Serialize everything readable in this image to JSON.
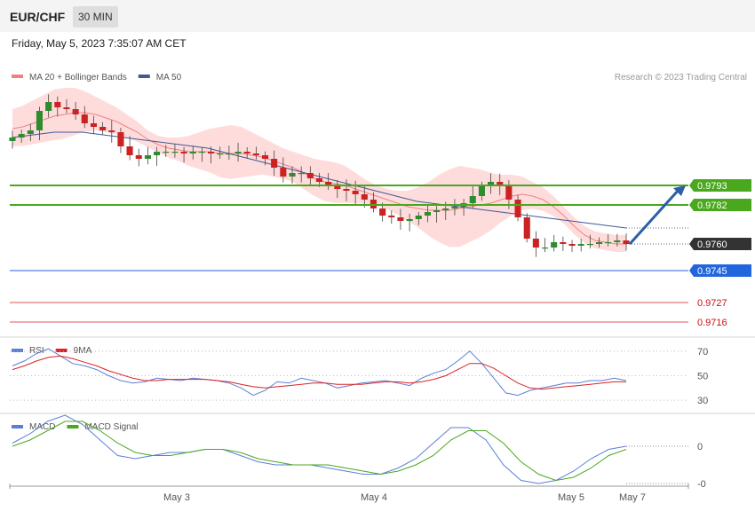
{
  "header": {
    "symbol": "EUR/CHF",
    "timeframe": "30 MIN"
  },
  "timestamp": "Friday, May 5, 2023 7:35:07 AM CET",
  "copyright": "Research © 2023 Trading Central",
  "colors": {
    "ma20": "#f08080",
    "bollinger_fill": "#ffd6d6",
    "ma50": "#3d5a99",
    "candle_up": "#2e8b2e",
    "candle_down": "#cc2222",
    "support_green": "#4aa81e",
    "pivot_blue": "#2266dd",
    "resistance_red": "#e05555",
    "rsi": "#5b7fd6",
    "rsi_ma": "#dd2222",
    "macd": "#5b7fd6",
    "macd_signal": "#4aa81e",
    "arrow": "#2d5fa8",
    "current_price_bg": "#333333"
  },
  "chart_data": [
    {
      "type": "candlestick",
      "panel": "price",
      "legend": [
        {
          "name": "MA 20 + Bollinger Bands",
          "color": "#f08080"
        },
        {
          "name": "MA 50",
          "color": "#3d5a99"
        }
      ],
      "x_ticks": [
        "May 3",
        "May 4",
        "May 5",
        "May 7"
      ],
      "ylim": [
        0.9705,
        0.985
      ],
      "series": [
        {
          "name": "Close",
          "values": [
            0.982,
            0.9822,
            0.9824,
            0.9835,
            0.984,
            0.9837,
            0.9836,
            0.9833,
            0.9828,
            0.9826,
            0.9824,
            0.9823,
            0.9815,
            0.981,
            0.9808,
            0.981,
            0.9812,
            0.9812,
            0.9812,
            0.9811,
            0.9812,
            0.9812,
            0.9811,
            0.9811,
            0.9811,
            0.9812,
            0.9811,
            0.981,
            0.9808,
            0.9803,
            0.9798,
            0.98,
            0.98,
            0.9797,
            0.9795,
            0.9793,
            0.9791,
            0.979,
            0.9788,
            0.9785,
            0.978,
            0.9776,
            0.9775,
            0.9773,
            0.9774,
            0.9776,
            0.9778,
            0.9779,
            0.978,
            0.9781,
            0.9783,
            0.9787,
            0.9793,
            0.9795,
            0.9793,
            0.9785,
            0.9775,
            0.9763,
            0.9758,
            0.9758,
            0.9761,
            0.976,
            0.9759,
            0.976,
            0.976,
            0.9761,
            0.9761,
            0.9762,
            0.976
          ]
        },
        {
          "name": "MA 20",
          "values": [
            0.9825,
            0.9826,
            0.9828,
            0.983,
            0.9832,
            0.9833,
            0.9834,
            0.9834,
            0.9833,
            0.9831,
            0.9829,
            0.9826,
            0.9823,
            0.9819,
            0.9816,
            0.9814,
            0.9813,
            0.9812,
            0.9812,
            0.9812,
            0.9811,
            0.9811,
            0.9811,
            0.981,
            0.9809,
            0.9807,
            0.9805,
            0.9803,
            0.98,
            0.9797,
            0.9795,
            0.9794,
            0.9793,
            0.9791,
            0.9789,
            0.9787,
            0.9785,
            0.9783,
            0.9781,
            0.978,
            0.9779,
            0.9779,
            0.9779,
            0.978,
            0.9781,
            0.9782,
            0.9783,
            0.9785,
            0.9787,
            0.9788,
            0.9787,
            0.9785,
            0.9781,
            0.9776,
            0.977,
            0.9765,
            0.9762,
            0.9761,
            0.976,
            0.976
          ]
        },
        {
          "name": "MA 50",
          "values": [
            0.982,
            0.9821,
            0.9822,
            0.9823,
            0.9823,
            0.9823,
            0.9822,
            0.9821,
            0.982,
            0.9819,
            0.9818,
            0.9817,
            0.9816,
            0.9815,
            0.9814,
            0.9812,
            0.981,
            0.9808,
            0.9806,
            0.9804,
            0.9802,
            0.98,
            0.9798,
            0.9796,
            0.9794,
            0.9792,
            0.979,
            0.9788,
            0.9786,
            0.9784,
            0.9783,
            0.9782,
            0.9781,
            0.978,
            0.9779,
            0.9778,
            0.9777,
            0.9776,
            0.9775,
            0.9774,
            0.9773,
            0.9772,
            0.9771,
            0.977,
            0.9769
          ]
        }
      ],
      "price_levels": [
        {
          "label": "0.9793",
          "value": 0.9793,
          "color": "#4aa81e",
          "style": "solid"
        },
        {
          "label": "0.9782",
          "value": 0.9782,
          "color": "#4aa81e",
          "style": "solid"
        },
        {
          "label": "0.9760",
          "value": 0.976,
          "color": "#333333",
          "style": "current"
        },
        {
          "label": "0.9745",
          "value": 0.9745,
          "color": "#2266dd",
          "style": "solid"
        },
        {
          "label": "0.9727",
          "value": 0.9727,
          "color": "#e05555",
          "style": "solid"
        },
        {
          "label": "0.9716",
          "value": 0.9716,
          "color": "#e05555",
          "style": "solid"
        }
      ],
      "projection": {
        "from": 0.976,
        "to": 0.9793,
        "direction": "up"
      }
    },
    {
      "type": "line",
      "panel": "rsi",
      "legend": [
        {
          "name": "RSI",
          "color": "#5b7fd6"
        },
        {
          "name": "9MA",
          "color": "#dd2222"
        }
      ],
      "y_ticks": [
        {
          "label": "70",
          "value": 70
        },
        {
          "label": "50",
          "value": 50
        },
        {
          "label": "30",
          "value": 30
        }
      ],
      "ylim": [
        20,
        80
      ],
      "series": [
        {
          "name": "RSI",
          "values": [
            58,
            62,
            68,
            72,
            66,
            60,
            58,
            55,
            50,
            46,
            44,
            45,
            48,
            47,
            46,
            48,
            47,
            46,
            44,
            40,
            34,
            38,
            45,
            44,
            48,
            46,
            44,
            40,
            42,
            44,
            45,
            46,
            44,
            42,
            48,
            52,
            55,
            62,
            70,
            60,
            48,
            36,
            34,
            38,
            40,
            42,
            44,
            44,
            46,
            46,
            48,
            46
          ]
        },
        {
          "name": "9MA",
          "values": [
            55,
            58,
            62,
            65,
            66,
            64,
            61,
            58,
            54,
            51,
            48,
            46,
            46,
            47,
            47,
            47,
            47,
            46,
            45,
            43,
            41,
            40,
            41,
            42,
            43,
            44,
            44,
            43,
            43,
            43,
            44,
            45,
            45,
            44,
            45,
            47,
            50,
            55,
            60,
            60,
            56,
            50,
            44,
            40,
            39,
            40,
            41,
            42,
            43,
            44,
            45,
            45
          ]
        }
      ]
    },
    {
      "type": "line",
      "panel": "macd",
      "legend": [
        {
          "name": "MACD",
          "color": "#5b7fd6"
        },
        {
          "name": "MACD Signal",
          "color": "#4aa81e"
        }
      ],
      "y_ticks": [
        {
          "label": "0",
          "value": 0
        },
        {
          "label": "-0",
          "value": -0.0012
        }
      ],
      "ylim": [
        -0.0014,
        0.001
      ],
      "series": [
        {
          "name": "MACD",
          "values": [
            0.0001,
            0.0004,
            0.0008,
            0.001,
            0.0007,
            0.0002,
            -0.0003,
            -0.0004,
            -0.0003,
            -0.0002,
            -0.0002,
            -0.0001,
            -0.0001,
            -0.0003,
            -0.0005,
            -0.0006,
            -0.0006,
            -0.0006,
            -0.0007,
            -0.0008,
            -0.0009,
            -0.0009,
            -0.0007,
            -0.0004,
            0.0001,
            0.0006,
            0.0006,
            0.0002,
            -0.0006,
            -0.0011,
            -0.0012,
            -0.0011,
            -0.0008,
            -0.0004,
            -0.0001,
            0.0
          ]
        },
        {
          "name": "MACD Signal",
          "values": [
            0.0,
            0.0002,
            0.0005,
            0.0008,
            0.0008,
            0.0005,
            0.0001,
            -0.0002,
            -0.0003,
            -0.0003,
            -0.0002,
            -0.0001,
            -0.0001,
            -0.0002,
            -0.0004,
            -0.0005,
            -0.0006,
            -0.0006,
            -0.0006,
            -0.0007,
            -0.0008,
            -0.0009,
            -0.0008,
            -0.0006,
            -0.0003,
            0.0002,
            0.0005,
            0.0005,
            0.0001,
            -0.0005,
            -0.0009,
            -0.0011,
            -0.001,
            -0.0007,
            -0.0003,
            -0.0001
          ]
        }
      ]
    }
  ]
}
